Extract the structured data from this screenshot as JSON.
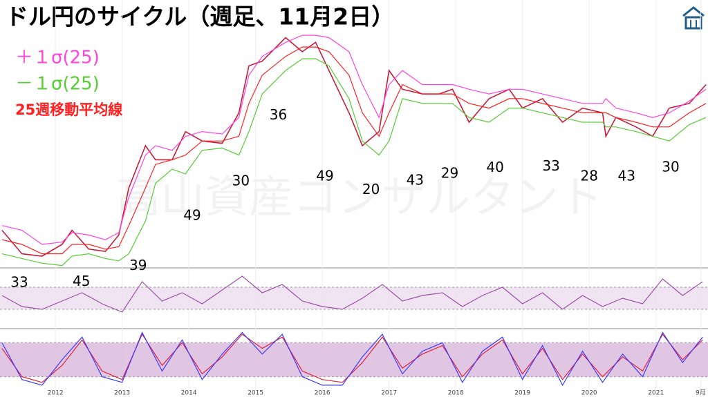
{
  "chart_data": [
    {
      "type": "line",
      "title": "ドル円のサイクル（週足、11月2日）",
      "watermark": "高山資産コンサルタント",
      "xlim": [
        2011.17,
        2021.78
      ],
      "ylim": [
        75,
        132
      ],
      "grid": true,
      "xticks": [
        2012,
        2013,
        2014,
        2015,
        2016,
        2017,
        2018,
        2019,
        2020,
        2021,
        {
          "value": 2021.67,
          "label": "9月"
        }
      ],
      "x": [
        2011.2,
        2011.5,
        2011.8,
        2012.1,
        2012.25,
        2012.5,
        2012.75,
        2012.95,
        2013.1,
        2013.35,
        2013.5,
        2013.75,
        2013.95,
        2014.2,
        2014.5,
        2014.75,
        2014.9,
        2015.1,
        2015.45,
        2015.7,
        2015.9,
        2016.1,
        2016.4,
        2016.6,
        2016.85,
        2017.0,
        2017.2,
        2017.5,
        2017.75,
        2017.95,
        2018.2,
        2018.5,
        2018.8,
        2019.0,
        2019.3,
        2019.6,
        2019.9,
        2020.2,
        2020.25,
        2020.4,
        2020.7,
        2020.95,
        2021.2,
        2021.5,
        2021.75
      ],
      "series": [
        {
          "color": "#c41e3a",
          "values": [
            83,
            78,
            77.5,
            80,
            83,
            79,
            78.5,
            82,
            92,
            101,
            98,
            98,
            104,
            102,
            101.5,
            108,
            118,
            119,
            124,
            121,
            123,
            117,
            108,
            101,
            104,
            117,
            113,
            112,
            112,
            113,
            106,
            111,
            113,
            109,
            111,
            106,
            109,
            108,
            103,
            107,
            105,
            103,
            109,
            110,
            114
          ]
        },
        {
          "name": "25週移動平均線",
          "color": "#ff2020",
          "values": [
            81,
            80,
            78,
            78,
            80,
            80,
            79,
            79.5,
            84,
            92,
            97,
            98,
            99,
            102,
            102,
            103,
            110,
            116,
            120,
            122,
            122,
            121,
            116,
            108,
            103,
            108,
            114,
            112,
            112,
            112,
            110,
            109,
            111,
            111,
            110,
            109,
            108,
            108,
            108,
            107,
            106,
            105,
            105,
            108,
            110
          ]
        },
        {
          "name": "＋１σ(25)",
          "color": "#ff44dd",
          "values": [
            84,
            83,
            80,
            80.5,
            82.5,
            82,
            81,
            82.5,
            90,
            99,
            101,
            100,
            103,
            104,
            103.5,
            107,
            116,
            120,
            123,
            124.5,
            124.5,
            124,
            121,
            114,
            107,
            114,
            117,
            114,
            114,
            114,
            113,
            112,
            113,
            113,
            112,
            111,
            110,
            110,
            111,
            109,
            108,
            107,
            108,
            110.5,
            113
          ]
        },
        {
          "name": "－１σ(25)",
          "color": "#55cc33",
          "values": [
            78,
            77,
            76,
            75.5,
            77.5,
            78,
            77,
            76.5,
            78,
            85,
            93,
            96,
            95,
            100,
            100.5,
            99,
            104,
            112,
            117,
            119.5,
            119.5,
            118,
            111,
            102,
            99,
            102,
            111,
            110,
            110,
            110,
            107,
            106,
            109,
            109,
            108,
            107,
            106,
            106,
            105,
            105,
            104,
            103,
            102,
            105.5,
            107
          ]
        }
      ],
      "annotations": [
        {
          "text": "33",
          "x": 2011.46,
          "y": 71.8
        },
        {
          "text": "45",
          "x": 2012.39,
          "y": 72
        },
        {
          "text": "39",
          "x": 2013.24,
          "y": 75.4
        },
        {
          "text": "49",
          "x": 2014.05,
          "y": 86
        },
        {
          "text": "30",
          "x": 2014.78,
          "y": 93.4
        },
        {
          "text": "36",
          "x": 2015.34,
          "y": 107.4
        },
        {
          "text": "49",
          "x": 2016.04,
          "y": 94.4
        },
        {
          "text": "20",
          "x": 2016.73,
          "y": 91.5
        },
        {
          "text": "43",
          "x": 2017.39,
          "y": 93.5
        },
        {
          "text": "29",
          "x": 2017.91,
          "y": 95
        },
        {
          "text": "40",
          "x": 2018.59,
          "y": 96.2
        },
        {
          "text": "33",
          "x": 2019.43,
          "y": 96.5
        },
        {
          "text": "28",
          "x": 2020.0,
          "y": 94.4
        },
        {
          "text": "43",
          "x": 2020.56,
          "y": 94.4
        },
        {
          "text": "30",
          "x": 2021.22,
          "y": 96.3
        }
      ]
    },
    {
      "type": "line",
      "xlim": [
        2011.17,
        2021.78
      ],
      "ylim": [
        0,
        100
      ],
      "bands": [
        30,
        70
      ],
      "band_color": "#ecdcef",
      "x": [
        2011.2,
        2011.5,
        2011.8,
        2012.1,
        2012.4,
        2012.7,
        2013.0,
        2013.3,
        2013.6,
        2013.9,
        2014.2,
        2014.5,
        2014.8,
        2015.1,
        2015.4,
        2015.7,
        2016.0,
        2016.3,
        2016.6,
        2016.9,
        2017.2,
        2017.5,
        2017.8,
        2018.1,
        2018.4,
        2018.7,
        2019.0,
        2019.3,
        2019.6,
        2019.9,
        2020.2,
        2020.5,
        2020.8,
        2021.1,
        2021.4,
        2021.7
      ],
      "series": [
        {
          "color": "#9b4fa8",
          "values": [
            55,
            35,
            30,
            45,
            60,
            40,
            25,
            80,
            45,
            60,
            40,
            65,
            90,
            60,
            75,
            45,
            35,
            30,
            50,
            75,
            45,
            55,
            60,
            35,
            55,
            70,
            40,
            60,
            30,
            55,
            35,
            50,
            40,
            85,
            55,
            80
          ]
        }
      ]
    },
    {
      "type": "line",
      "xlim": [
        2011.17,
        2021.78
      ],
      "ylim": [
        0,
        100
      ],
      "bands": [
        20,
        80
      ],
      "band_color": "#d9b8dd",
      "x": [
        2011.2,
        2011.5,
        2011.8,
        2012.1,
        2012.4,
        2012.7,
        2013.0,
        2013.3,
        2013.6,
        2013.9,
        2014.2,
        2014.5,
        2014.8,
        2015.1,
        2015.4,
        2015.7,
        2016.0,
        2016.3,
        2016.6,
        2016.9,
        2017.2,
        2017.5,
        2017.8,
        2018.1,
        2018.4,
        2018.7,
        2019.0,
        2019.3,
        2019.6,
        2019.9,
        2020.2,
        2020.5,
        2020.8,
        2021.1,
        2021.4,
        2021.7
      ],
      "series": [
        {
          "color": "#e0203a",
          "values": [
            70,
            20,
            10,
            40,
            85,
            30,
            15,
            95,
            40,
            80,
            25,
            55,
            95,
            70,
            90,
            30,
            15,
            10,
            45,
            90,
            35,
            60,
            75,
            20,
            60,
            85,
            25,
            70,
            15,
            60,
            20,
            55,
            30,
            95,
            50,
            85
          ]
        },
        {
          "color": "#3a3aff",
          "values": [
            80,
            15,
            5,
            50,
            90,
            20,
            10,
            98,
            30,
            85,
            15,
            60,
            98,
            60,
            95,
            20,
            5,
            5,
            55,
            95,
            25,
            65,
            80,
            10,
            65,
            90,
            15,
            75,
            5,
            65,
            10,
            60,
            20,
            98,
            45,
            90
          ]
        }
      ]
    }
  ]
}
